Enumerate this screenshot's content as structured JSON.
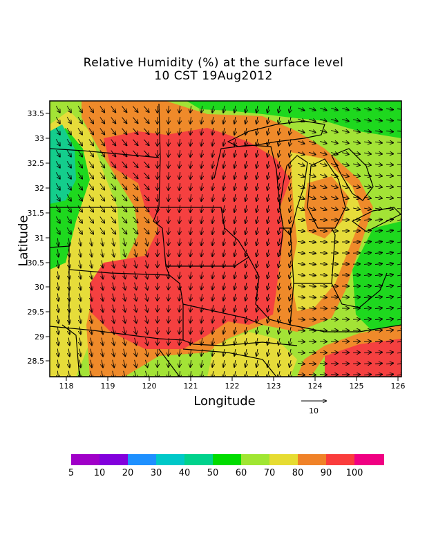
{
  "title": {
    "line1": "Relative Humidity (%) at the surface level",
    "line2": "10 CST 19Aug2012"
  },
  "axes": {
    "xlabel": "Longitude",
    "ylabel": "Latitude",
    "x_ticks": [
      "118",
      "119",
      "120",
      "121",
      "122",
      "123",
      "124",
      "125",
      "126"
    ],
    "y_ticks": [
      "33.5",
      "33",
      "32.5",
      "32",
      "31.5",
      "31",
      "30.5",
      "30",
      "29.5",
      "29",
      "28.5"
    ]
  },
  "vector_reference": {
    "label": "10"
  },
  "colorbar": {
    "labels": [
      "5",
      "10",
      "20",
      "30",
      "40",
      "50",
      "60",
      "70",
      "80",
      "90",
      "100"
    ],
    "colors": [
      "#a000c8",
      "#8200dc",
      "#1e90ff",
      "#00c8c8",
      "#00d28c",
      "#00dc00",
      "#a0e632",
      "#e6dc32",
      "#f08228",
      "#fa3c3c",
      "#f00082"
    ]
  },
  "map_colors": {
    "red": "#f54040",
    "orange": "#ef8a2a",
    "yellow": "#e6dc3a",
    "lightgreen": "#a3e336",
    "green": "#1ed81e",
    "teal": "#14cd8c"
  }
}
